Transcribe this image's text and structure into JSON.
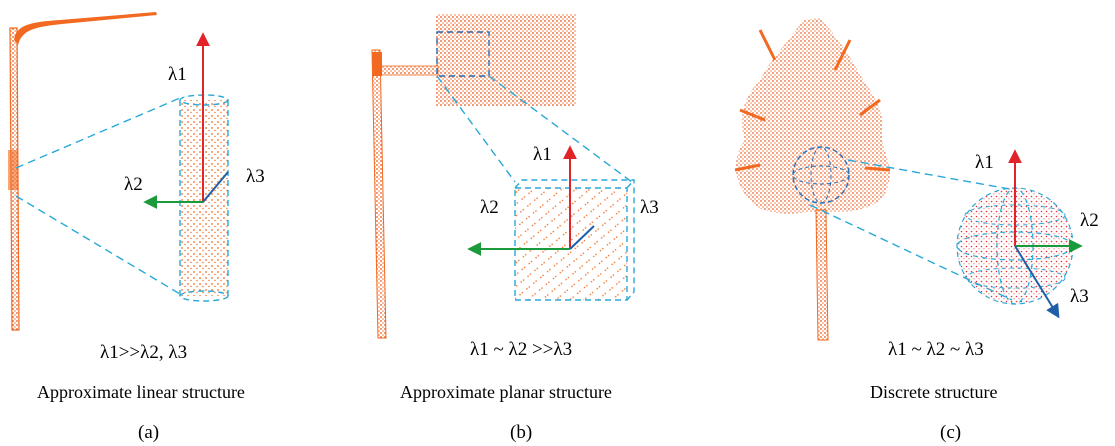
{
  "colors": {
    "points": "#f26a21",
    "dashed": "#2aa8d8",
    "axis1": "#e0242a",
    "axis2": "#1a9a3a",
    "axis3": "#1f5fa8"
  },
  "panels": [
    {
      "axis_labels": [
        "λ1",
        "λ2",
        "λ3"
      ],
      "equation": "λ1>>λ2, λ3",
      "caption": "Approximate linear structure",
      "sublabel": "(a)"
    },
    {
      "axis_labels": [
        "λ1",
        "λ2",
        "λ3"
      ],
      "equation": "λ1 ~ λ2 >>λ3",
      "caption": "Approximate planar structure",
      "sublabel": "(b)"
    },
    {
      "axis_labels": [
        "λ1",
        "λ2",
        "λ3"
      ],
      "equation": "λ1 ~ λ2 ~ λ3",
      "caption": "Discrete structure",
      "sublabel": "(c)"
    }
  ]
}
